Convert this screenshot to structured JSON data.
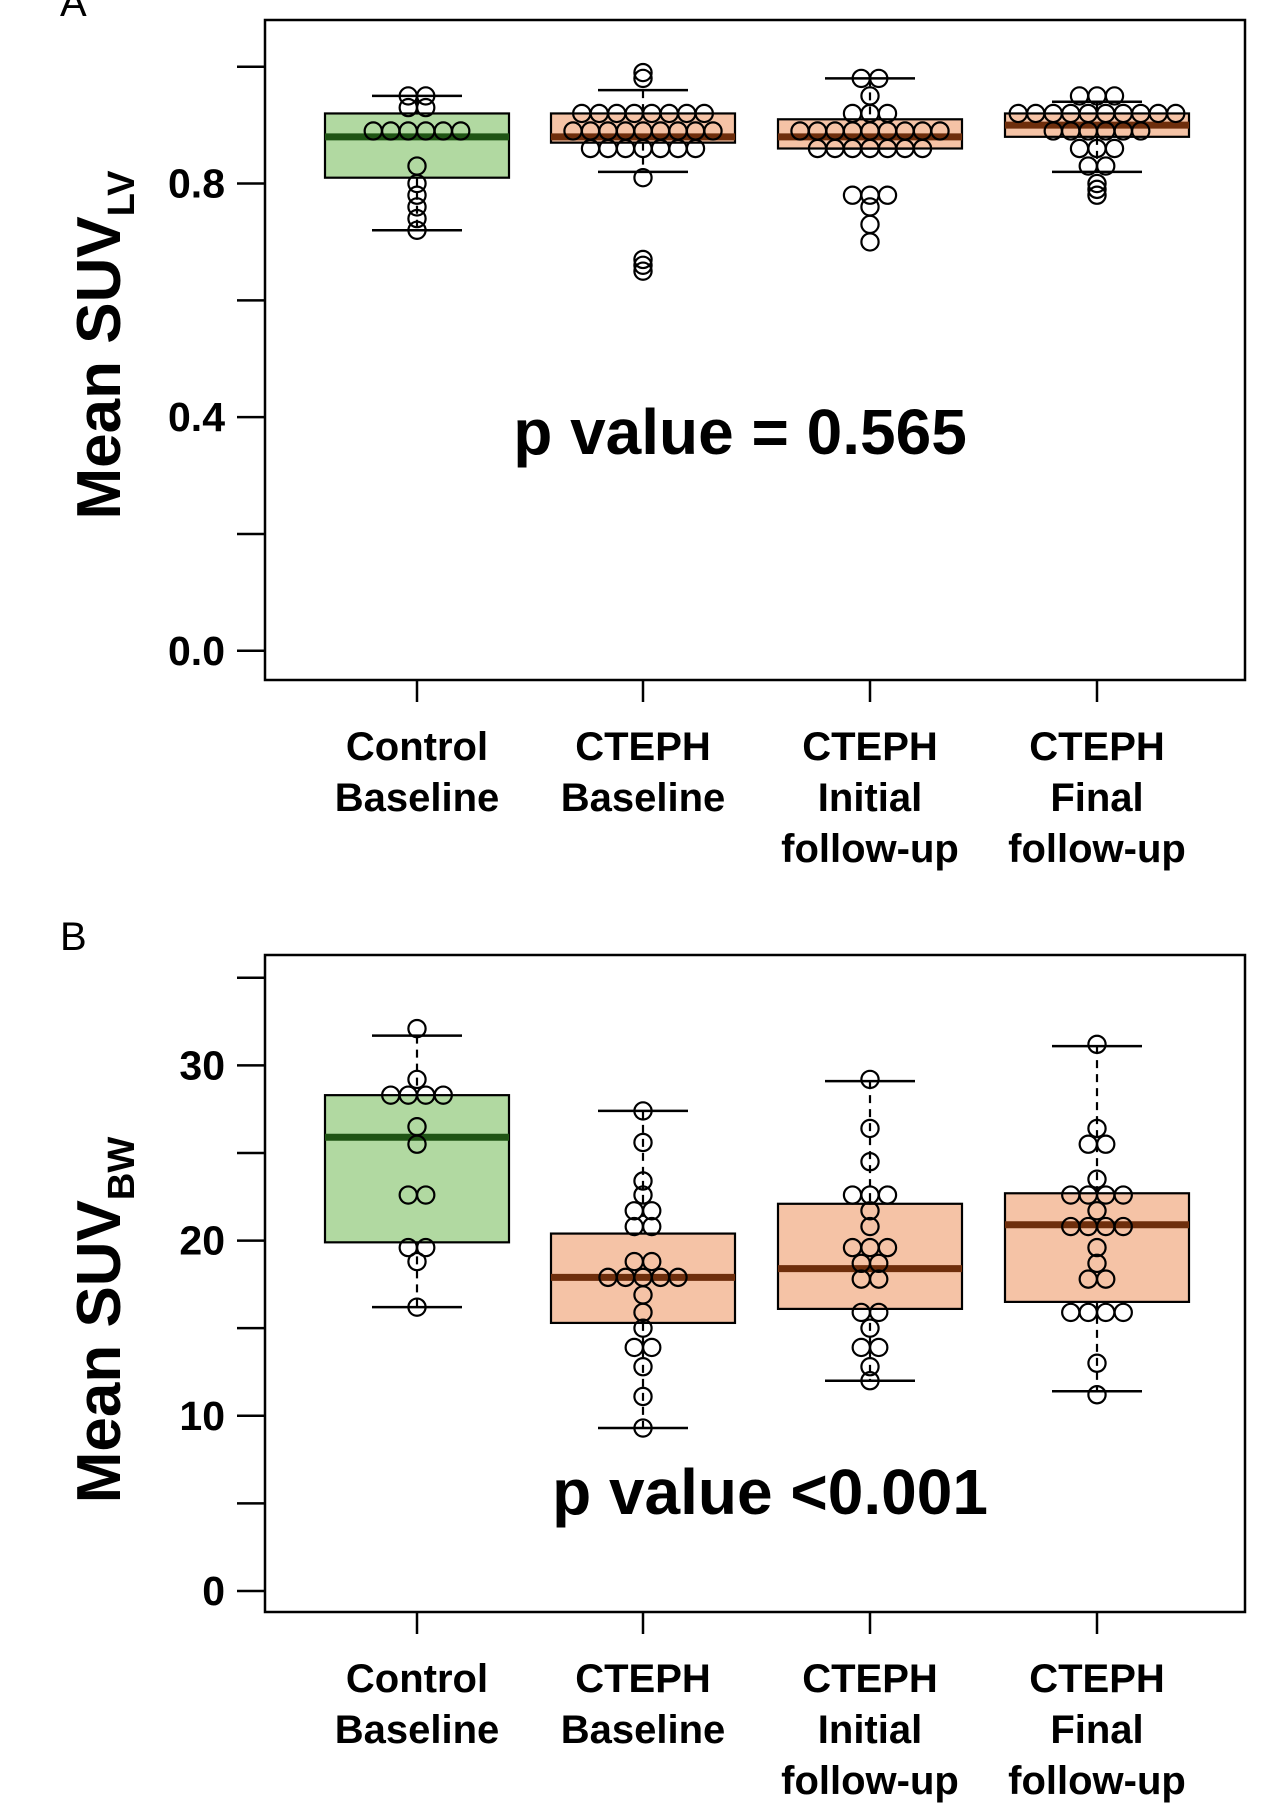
{
  "chart_data": [
    {
      "panel": "A",
      "type": "box",
      "ylabel": "Mean SUV",
      "ylabel_sub": "LV",
      "ylim": [
        -0.05,
        1.08
      ],
      "yticks_labeled": [
        0.0,
        0.4,
        0.8
      ],
      "yticks_minor": [
        0.2,
        0.6,
        1.0
      ],
      "annotation": "p value = 0.565",
      "categories": [
        {
          "lines": [
            "Control",
            "Baseline"
          ],
          "group": "control",
          "box": {
            "whisker_low": 0.72,
            "q1": 0.81,
            "median": 0.88,
            "q3": 0.92,
            "whisker_high": 0.95
          },
          "points": [
            0.95,
            0.95,
            0.93,
            0.93,
            0.89,
            0.89,
            0.89,
            0.89,
            0.89,
            0.89,
            0.83,
            0.8,
            0.78,
            0.76,
            0.74,
            0.72
          ]
        },
        {
          "lines": [
            "CTEPH",
            "Baseline"
          ],
          "group": "cteph",
          "box": {
            "whisker_low": 0.82,
            "q1": 0.87,
            "median": 0.88,
            "q3": 0.92,
            "whisker_high": 0.96
          },
          "points": [
            0.99,
            0.98,
            0.92,
            0.92,
            0.92,
            0.92,
            0.92,
            0.92,
            0.92,
            0.92,
            0.89,
            0.89,
            0.89,
            0.89,
            0.89,
            0.89,
            0.89,
            0.89,
            0.89,
            0.86,
            0.86,
            0.86,
            0.86,
            0.86,
            0.86,
            0.86,
            0.81,
            0.67,
            0.66,
            0.65
          ]
        },
        {
          "lines": [
            "CTEPH",
            "Initial",
            "follow-up"
          ],
          "group": "cteph",
          "box": {
            "whisker_low": 0.86,
            "q1": 0.86,
            "median": 0.88,
            "q3": 0.91,
            "whisker_high": 0.98
          },
          "points": [
            0.98,
            0.98,
            0.95,
            0.92,
            0.92,
            0.92,
            0.89,
            0.89,
            0.89,
            0.89,
            0.89,
            0.89,
            0.89,
            0.89,
            0.89,
            0.86,
            0.86,
            0.86,
            0.86,
            0.86,
            0.86,
            0.86,
            0.78,
            0.78,
            0.78,
            0.76,
            0.73,
            0.7
          ]
        },
        {
          "lines": [
            "CTEPH",
            "Final",
            "follow-up"
          ],
          "group": "cteph",
          "box": {
            "whisker_low": 0.82,
            "q1": 0.88,
            "median": 0.9,
            "q3": 0.92,
            "whisker_high": 0.94
          },
          "points": [
            0.95,
            0.95,
            0.95,
            0.92,
            0.92,
            0.92,
            0.92,
            0.92,
            0.92,
            0.92,
            0.92,
            0.92,
            0.92,
            0.89,
            0.89,
            0.89,
            0.89,
            0.89,
            0.89,
            0.86,
            0.86,
            0.86,
            0.83,
            0.83,
            0.8,
            0.79,
            0.78
          ]
        }
      ]
    },
    {
      "panel": "B",
      "type": "box",
      "ylabel": "Mean SUV",
      "ylabel_sub": "BW",
      "ylim": [
        -1.2,
        36.3
      ],
      "yticks_labeled": [
        0,
        10,
        20,
        30
      ],
      "yticks_minor": [
        5,
        15,
        25,
        35
      ],
      "annotation": "p value <0.001",
      "categories": [
        {
          "lines": [
            "Control",
            "Baseline"
          ],
          "group": "control",
          "box": {
            "whisker_low": 16.2,
            "q1": 19.9,
            "median": 25.9,
            "q3": 28.3,
            "whisker_high": 31.7
          },
          "points": [
            32.1,
            29.2,
            28.3,
            28.3,
            28.3,
            28.3,
            26.5,
            25.5,
            22.6,
            22.6,
            19.6,
            19.6,
            18.8,
            16.2
          ]
        },
        {
          "lines": [
            "CTEPH",
            "Baseline"
          ],
          "group": "cteph",
          "box": {
            "whisker_low": 9.3,
            "q1": 15.3,
            "median": 17.9,
            "q3": 20.4,
            "whisker_high": 27.4
          },
          "points": [
            27.4,
            25.6,
            23.4,
            22.6,
            21.7,
            21.7,
            20.8,
            20.8,
            18.8,
            18.8,
            17.9,
            17.9,
            17.9,
            17.9,
            17.9,
            16.9,
            15.9,
            15.0,
            13.9,
            13.9,
            12.8,
            11.1,
            9.3
          ]
        },
        {
          "lines": [
            "CTEPH",
            "Initial",
            "follow-up"
          ],
          "group": "cteph",
          "box": {
            "whisker_low": 12.0,
            "q1": 16.1,
            "median": 18.4,
            "q3": 22.1,
            "whisker_high": 29.1
          },
          "points": [
            29.2,
            26.4,
            24.5,
            22.6,
            22.6,
            22.6,
            21.7,
            20.8,
            19.6,
            19.6,
            19.6,
            18.7,
            18.7,
            17.8,
            17.8,
            15.9,
            15.9,
            15.0,
            13.9,
            13.9,
            12.8,
            12.0
          ]
        },
        {
          "lines": [
            "CTEPH",
            "Final",
            "follow-up"
          ],
          "group": "cteph",
          "box": {
            "whisker_low": 11.4,
            "q1": 16.5,
            "median": 20.9,
            "q3": 22.7,
            "whisker_high": 31.1
          },
          "points": [
            31.2,
            26.4,
            25.5,
            25.5,
            23.5,
            22.6,
            22.6,
            22.6,
            22.6,
            21.7,
            20.8,
            20.8,
            20.8,
            20.8,
            19.6,
            18.7,
            17.8,
            17.8,
            15.9,
            15.9,
            15.9,
            15.9,
            13.0,
            11.2
          ]
        }
      ]
    }
  ],
  "colors": {
    "control_fill": "#b1d9a1",
    "control_median": "#1f5414",
    "cteph_fill": "#f5c3a6",
    "cteph_median": "#6e2e0c",
    "line": "#000000",
    "point_stroke": "#000000"
  }
}
